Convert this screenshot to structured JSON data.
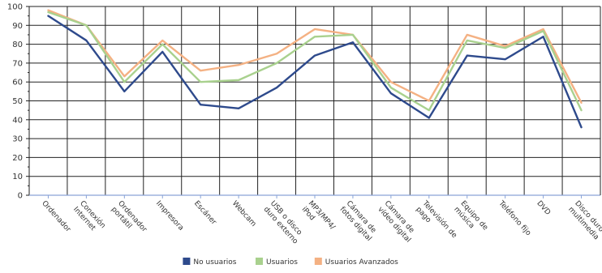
{
  "chart_data": {
    "type": "line",
    "categories": [
      [
        "Ordenador"
      ],
      [
        "Conexión",
        "Internet"
      ],
      [
        "Ordenador",
        "portátil"
      ],
      [
        "Impresora"
      ],
      [
        "Escáner"
      ],
      [
        "Webcam"
      ],
      [
        "USB o disco",
        "duro externo"
      ],
      [
        "MP3/MP4/",
        "iPod"
      ],
      [
        "Cámara de",
        "fotos digital"
      ],
      [
        "Cámara de",
        "vídeo digital"
      ],
      [
        "Televisión de",
        "pago"
      ],
      [
        "Equipo de",
        "música"
      ],
      [
        "Teléfono fijo"
      ],
      [
        "DVD"
      ],
      [
        "Disco duro",
        "multimedia"
      ]
    ],
    "series": [
      {
        "name": "No usuarios",
        "color": "#2e4a8c",
        "values": [
          95,
          82,
          55,
          76,
          48,
          46,
          57,
          74,
          81,
          54,
          41,
          74,
          72,
          84,
          36
        ]
      },
      {
        "name": "Usuarios",
        "color": "#a9d18e",
        "values": [
          97,
          90,
          60,
          80,
          60,
          61,
          70,
          84,
          85,
          57,
          45,
          82,
          78,
          87,
          45
        ]
      },
      {
        "name": "Usuarios Avanzados",
        "color": "#f4b183",
        "values": [
          98,
          90,
          63,
          82,
          66,
          69,
          75,
          88,
          85,
          60,
          50,
          85,
          79,
          88,
          49
        ]
      }
    ],
    "ylim": [
      0,
      100
    ],
    "ytick_step": 10,
    "grid": true,
    "legend_position": "bottom-center"
  }
}
